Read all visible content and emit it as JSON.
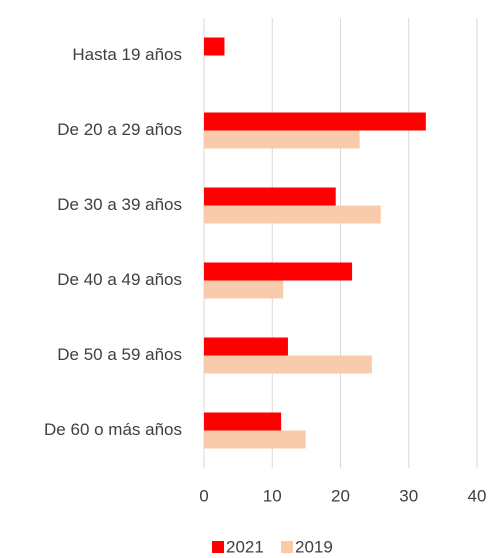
{
  "chart_data": {
    "type": "barh",
    "categories": [
      "Hasta 19 años",
      "De 20 a 29 años",
      "De 30 a 39 años",
      "De 40 a 49 años",
      "De 50 a 59 años",
      "De 60 o más años"
    ],
    "series": [
      {
        "name": "2021",
        "color": "#ff0000",
        "values": [
          3,
          32.5,
          19.3,
          21.7,
          12.3,
          11.3
        ]
      },
      {
        "name": "2019",
        "color": "#f8cbad",
        "values": [
          null,
          22.8,
          25.9,
          11.6,
          24.6,
          14.9
        ]
      }
    ],
    "xlim": [
      0,
      40
    ],
    "xticks": [
      0,
      10,
      20,
      30,
      40
    ],
    "grid": true,
    "legend": "bottom"
  }
}
